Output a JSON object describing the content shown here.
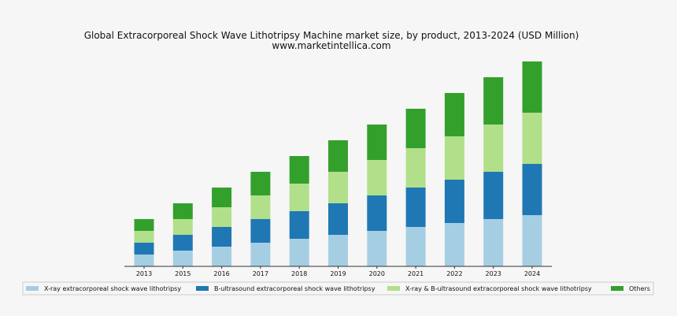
{
  "chart_data": {
    "type": "bar",
    "stacked": true,
    "title": "Global Extracorporeal Shock Wave Lithotripsy Machine market size, by product, 2013-2024 (USD Million)",
    "subtitle": "www.marketintellica.com",
    "xlabel": "",
    "ylabel": "",
    "grid": false,
    "legend_position": "bottom",
    "categories": [
      "2013",
      "2015",
      "2016",
      "2017",
      "2018",
      "2019",
      "2020",
      "2021",
      "2022",
      "2023",
      "2024"
    ],
    "series": [
      {
        "name": "X-ray extracorporeal shock wave lithotripsy",
        "color": "#a6cee3",
        "values": [
          15,
          20,
          25,
          30,
          35,
          40,
          45,
          50,
          55,
          60,
          65
        ]
      },
      {
        "name": "B-ultrasound extracorporeal shock wave lithotripsy",
        "color": "#1f78b4",
        "values": [
          15,
          20,
          25,
          30,
          35,
          40,
          45,
          50,
          55,
          60,
          65
        ]
      },
      {
        "name": "X-ray & B-ultrasound extracorporeal shock wave lithotripsy",
        "color": "#b2df8a",
        "values": [
          15,
          20,
          25,
          30,
          35,
          40,
          45,
          50,
          55,
          60,
          65
        ]
      },
      {
        "name": "Others",
        "color": "#33a02c",
        "values": [
          15,
          20,
          25,
          30,
          35,
          40,
          45,
          50,
          55,
          60,
          65
        ]
      }
    ],
    "ylim": [
      0,
      280
    ]
  }
}
